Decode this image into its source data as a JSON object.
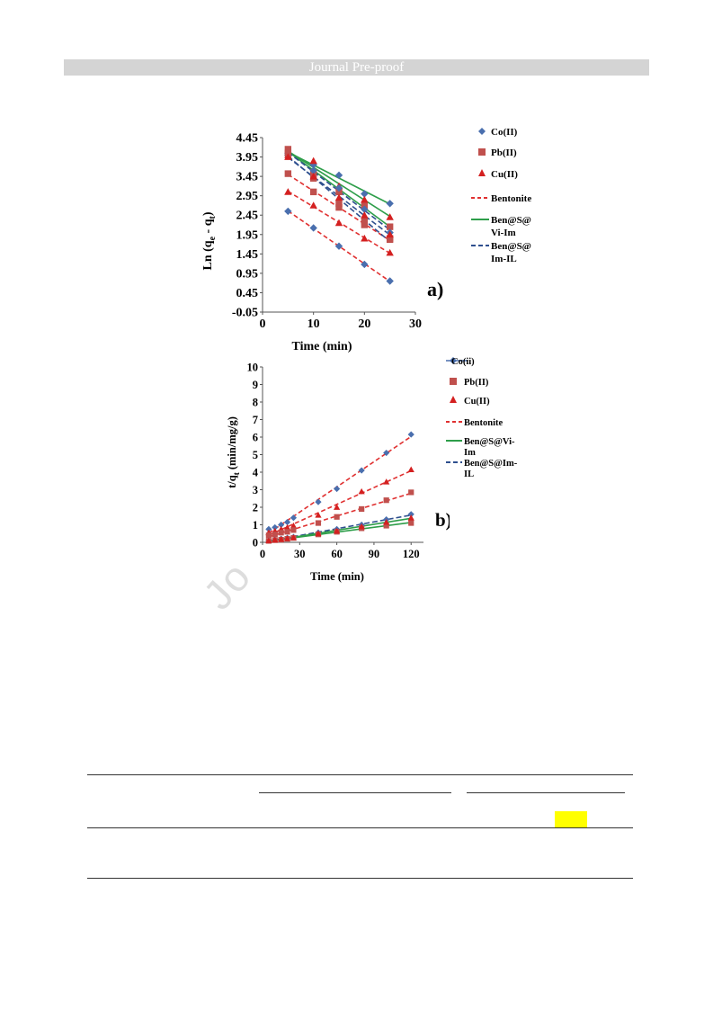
{
  "header": {
    "text": "Journal Pre-proof"
  },
  "watermark": {
    "text": "Jo"
  },
  "figure_a": {
    "panel_label": "a)",
    "xlabel": "Time (min)",
    "ylabel_main": "Ln (q",
    "ylabel_sub1": "e",
    "ylabel_mid": " - q",
    "ylabel_sub2": "t",
    "ylabel_end": ")",
    "yticks": [
      "4.45",
      "3.95",
      "3.45",
      "2.95",
      "2.45",
      "1.95",
      "1.45",
      "0.95",
      "0.45",
      "-0.05"
    ],
    "xticks": [
      "0",
      "10",
      "20",
      "30"
    ],
    "legend": {
      "co": "Co(II)",
      "pb": "Pb(II)",
      "cu": "Cu(II)",
      "bentonite": "Bentonite",
      "vi_1": "Ben@S@",
      "vi_2": "Vi-Im",
      "im_1": "Ben@S@",
      "im_2": "Im-IL"
    }
  },
  "figure_b": {
    "panel_label": "b)",
    "xlabel": "Time (min)",
    "ylabel_main": "t/q",
    "ylabel_sub": "t",
    "ylabel_end": " (min/mg/g)",
    "yticks": [
      "10",
      "9",
      "8",
      "7",
      "6",
      "5",
      "4",
      "3",
      "2",
      "1",
      "0"
    ],
    "xticks": [
      "0",
      "30",
      "60",
      "90",
      "120"
    ],
    "legend": {
      "co": "Co(ii)",
      "pb": "Pb(II)",
      "cu": "Cu(II)",
      "bentonite": "Bentonite",
      "vi_1": "Ben@S@Vi-",
      "vi_2": "Im",
      "im_1": "Ben@S@Im-",
      "im_2": "IL"
    }
  },
  "colors": {
    "co": "#4a6fae",
    "pb": "#c0504d",
    "cu": "#d42020",
    "bentonite": "#e03030",
    "vi": "#2e9e4a",
    "im": "#2e4f8e"
  },
  "chart_data": [
    {
      "type": "scatter",
      "title": "",
      "xlabel": "Time (min)",
      "ylabel": "Ln (qe - qt)",
      "xlim": [
        0,
        30
      ],
      "ylim": [
        -0.05,
        4.45
      ],
      "series": [
        {
          "name": "Co(II)",
          "adsorbent": "Bentonite",
          "x": [
            5,
            10,
            15,
            20,
            25
          ],
          "y": [
            2.55,
            2.12,
            1.65,
            1.18,
            0.75
          ]
        },
        {
          "name": "Pb(II)",
          "adsorbent": "Bentonite",
          "x": [
            5,
            10,
            15,
            20,
            25
          ],
          "y": [
            3.52,
            3.05,
            2.65,
            2.2,
            1.82
          ]
        },
        {
          "name": "Cu(II)",
          "adsorbent": "Bentonite",
          "x": [
            5,
            10,
            15,
            20,
            25
          ],
          "y": [
            3.05,
            2.7,
            2.25,
            1.85,
            1.48
          ]
        },
        {
          "name": "Co(II)",
          "adsorbent": "Ben@S@Vi-Im",
          "x": [
            5,
            10,
            15,
            20,
            25
          ],
          "y": [
            4.05,
            3.75,
            3.48,
            3.0,
            2.75
          ]
        },
        {
          "name": "Pb(II)",
          "adsorbent": "Ben@S@Vi-Im",
          "x": [
            5,
            10,
            15,
            20,
            25
          ],
          "y": [
            4.15,
            3.55,
            3.05,
            2.7,
            2.15
          ]
        },
        {
          "name": "Cu(II)",
          "adsorbent": "Ben@S@Vi-Im",
          "x": [
            5,
            10,
            15,
            20,
            25
          ],
          "y": [
            4.0,
            3.85,
            3.2,
            2.85,
            2.4
          ]
        },
        {
          "name": "Co(II)",
          "adsorbent": "Ben@S@Im-IL",
          "x": [
            5,
            10,
            15,
            20,
            25
          ],
          "y": [
            4.0,
            3.6,
            3.15,
            2.6,
            2.0
          ]
        },
        {
          "name": "Pb(II)",
          "adsorbent": "Ben@S@Im-IL",
          "x": [
            5,
            10,
            15,
            20,
            25
          ],
          "y": [
            4.05,
            3.4,
            2.75,
            2.3,
            1.85
          ]
        },
        {
          "name": "Cu(II)",
          "adsorbent": "Ben@S@Im-IL",
          "x": [
            5,
            10,
            15,
            20,
            25
          ],
          "y": [
            3.95,
            3.45,
            2.9,
            2.45,
            1.95
          ]
        }
      ]
    },
    {
      "type": "scatter",
      "title": "",
      "xlabel": "Time (min)",
      "ylabel": "t/qt (min/mg/g)",
      "xlim": [
        0,
        130
      ],
      "ylim": [
        0,
        10
      ],
      "series": [
        {
          "name": "Co(II)",
          "adsorbent": "Bentonite",
          "x": [
            5,
            10,
            15,
            20,
            25,
            45,
            60,
            80,
            100,
            120
          ],
          "y": [
            0.75,
            0.85,
            1.0,
            1.15,
            1.4,
            2.3,
            3.05,
            4.1,
            5.1,
            6.15
          ]
        },
        {
          "name": "Cu(II)",
          "adsorbent": "Bentonite",
          "x": [
            5,
            10,
            15,
            20,
            25,
            45,
            60,
            80,
            100,
            120
          ],
          "y": [
            0.55,
            0.65,
            0.75,
            0.85,
            0.95,
            1.55,
            2.0,
            2.9,
            3.45,
            4.15
          ]
        },
        {
          "name": "Pb(II)",
          "adsorbent": "Bentonite",
          "x": [
            5,
            10,
            15,
            20,
            25,
            45,
            60,
            80,
            100,
            120
          ],
          "y": [
            0.4,
            0.45,
            0.55,
            0.6,
            0.7,
            1.1,
            1.45,
            1.9,
            2.4,
            2.85
          ]
        },
        {
          "name": "Co(II)",
          "adsorbent": "Ben@S@Im-IL",
          "x": [
            5,
            10,
            15,
            20,
            25,
            45,
            60,
            80,
            100,
            120
          ],
          "y": [
            0.1,
            0.15,
            0.2,
            0.25,
            0.3,
            0.55,
            0.75,
            1.0,
            1.3,
            1.6
          ]
        },
        {
          "name": "Pb(II)",
          "adsorbent": "Ben@S@Vi-Im",
          "x": [
            5,
            10,
            15,
            20,
            25,
            45,
            60,
            80,
            100,
            120
          ],
          "y": [
            0.08,
            0.12,
            0.15,
            0.2,
            0.25,
            0.45,
            0.6,
            0.8,
            0.95,
            1.1
          ]
        },
        {
          "name": "Cu(II)",
          "adsorbent": "Ben@S@Vi-Im",
          "x": [
            5,
            10,
            15,
            20,
            25,
            45,
            60,
            80,
            100,
            120
          ],
          "y": [
            0.1,
            0.14,
            0.18,
            0.22,
            0.27,
            0.5,
            0.65,
            0.9,
            1.15,
            1.4
          ]
        }
      ]
    }
  ]
}
